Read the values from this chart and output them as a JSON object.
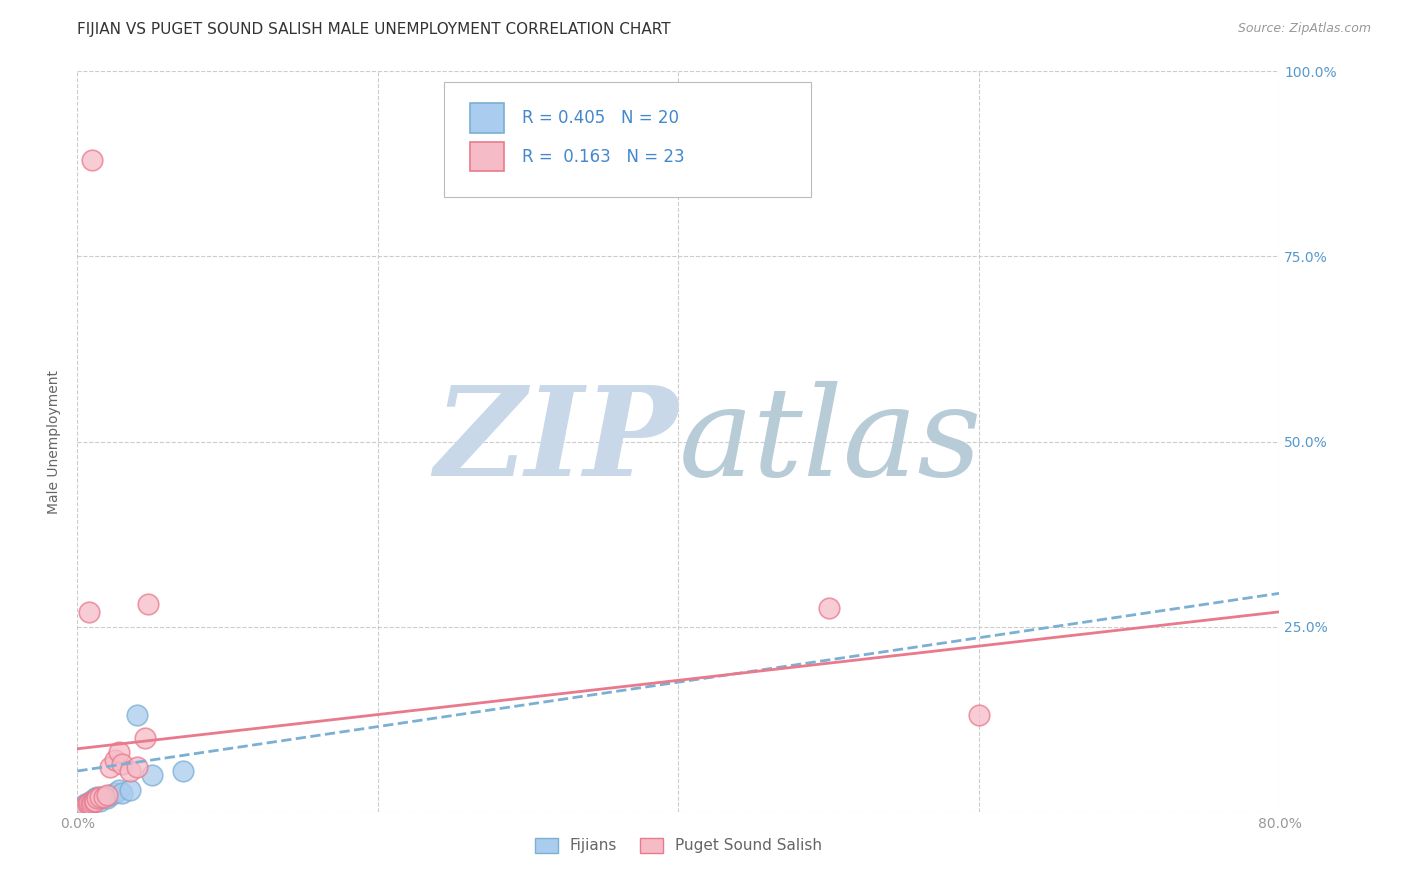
{
  "title": "FIJIAN VS PUGET SOUND SALISH MALE UNEMPLOYMENT CORRELATION CHART",
  "source": "Source: ZipAtlas.com",
  "ylabel": "Male Unemployment",
  "xlim": [
    0.0,
    0.8
  ],
  "ylim": [
    0.0,
    1.0
  ],
  "xticks": [
    0.0,
    0.2,
    0.4,
    0.6,
    0.8
  ],
  "xticklabels": [
    "0.0%",
    "",
    "",
    "",
    "80.0%"
  ],
  "yticks": [
    0.0,
    0.25,
    0.5,
    0.75,
    1.0
  ],
  "right_yticklabels": [
    "",
    "25.0%",
    "50.0%",
    "75.0%",
    "100.0%"
  ],
  "grid_color": "#cccccc",
  "background_color": "#ffffff",
  "fijian_color": "#7bafd4",
  "fijian_fill": "#aaccee",
  "puget_color": "#e87a8c",
  "puget_fill": "#f5bcc8",
  "fijian_R": 0.405,
  "fijian_N": 20,
  "puget_R": 0.163,
  "puget_N": 23,
  "fijian_x": [
    0.005,
    0.007,
    0.008,
    0.009,
    0.01,
    0.011,
    0.012,
    0.013,
    0.015,
    0.016,
    0.018,
    0.02,
    0.022,
    0.025,
    0.028,
    0.03,
    0.035,
    0.04,
    0.05,
    0.07
  ],
  "fijian_y": [
    0.01,
    0.012,
    0.01,
    0.015,
    0.013,
    0.015,
    0.018,
    0.02,
    0.015,
    0.018,
    0.02,
    0.018,
    0.022,
    0.025,
    0.03,
    0.025,
    0.03,
    0.13,
    0.05,
    0.055
  ],
  "puget_x": [
    0.005,
    0.007,
    0.008,
    0.009,
    0.01,
    0.011,
    0.012,
    0.013,
    0.015,
    0.018,
    0.02,
    0.022,
    0.025,
    0.028,
    0.03,
    0.035,
    0.04,
    0.045,
    0.047,
    0.5,
    0.6,
    0.01,
    0.008
  ],
  "puget_y": [
    0.008,
    0.01,
    0.012,
    0.01,
    0.013,
    0.015,
    0.015,
    0.018,
    0.02,
    0.02,
    0.022,
    0.06,
    0.07,
    0.08,
    0.065,
    0.055,
    0.06,
    0.1,
    0.28,
    0.275,
    0.13,
    0.88,
    0.27
  ],
  "fijian_line_x": [
    0.0,
    0.8
  ],
  "fijian_line_y": [
    0.055,
    0.295
  ],
  "puget_line_x": [
    0.0,
    0.8
  ],
  "puget_line_y": [
    0.085,
    0.27
  ],
  "watermark_zip": "ZIP",
  "watermark_atlas": "atlas",
  "watermark_color_zip": "#c8d8e8",
  "watermark_color_atlas": "#b8ccd8",
  "legend_labels": [
    "Fijians",
    "Puget Sound Salish"
  ]
}
